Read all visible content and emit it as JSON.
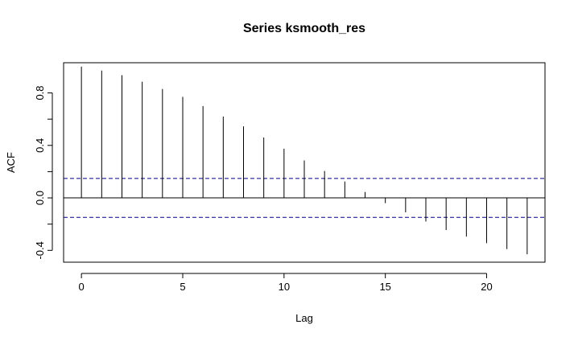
{
  "chart_data": {
    "type": "bar",
    "title": "Series  ksmooth_res",
    "xlabel": "Lag",
    "ylabel": "ACF",
    "x": [
      0,
      1,
      2,
      3,
      4,
      5,
      6,
      7,
      8,
      9,
      10,
      11,
      12,
      13,
      14,
      15,
      16,
      17,
      18,
      19,
      20,
      21,
      22
    ],
    "values": [
      1.0,
      0.97,
      0.935,
      0.885,
      0.83,
      0.77,
      0.7,
      0.62,
      0.545,
      0.46,
      0.375,
      0.285,
      0.205,
      0.125,
      0.045,
      -0.04,
      -0.11,
      -0.18,
      -0.245,
      -0.295,
      -0.345,
      -0.39,
      -0.43
    ],
    "xlim": [
      -0.88,
      22.88
    ],
    "ylim": [
      -0.49,
      1.03
    ],
    "x_ticks": [
      0,
      5,
      10,
      15,
      20
    ],
    "x_tick_labels": [
      "0",
      "5",
      "10",
      "15",
      "20"
    ],
    "y_ticks": [
      -0.4,
      -0.2,
      0.0,
      0.2,
      0.4,
      0.6,
      0.8
    ],
    "y_tick_labels": [
      "-0.4",
      "",
      "0.0",
      "",
      "0.4",
      "",
      "0.8"
    ],
    "confidence_limit": 0.148,
    "zero_line": true,
    "grid": false,
    "bar_color": "#000000",
    "ci_color": "#00008b"
  }
}
